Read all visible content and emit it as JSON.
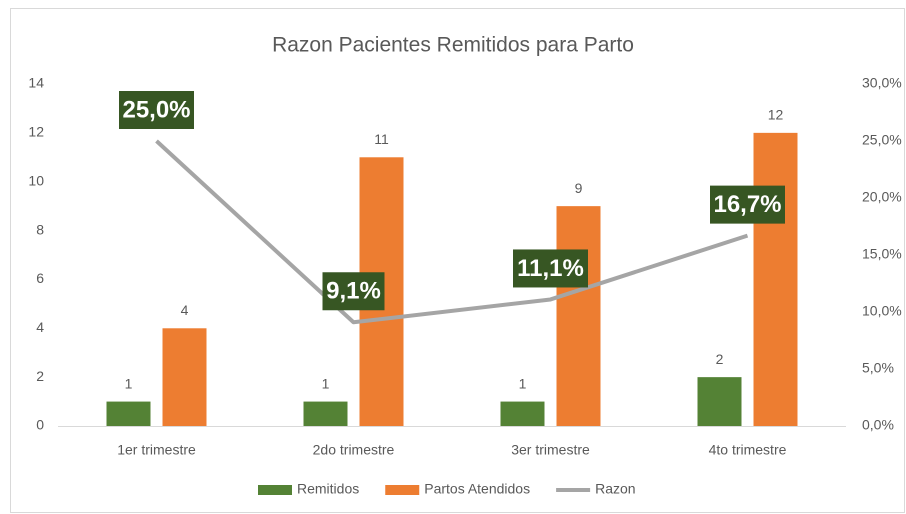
{
  "chart_data": {
    "type": "bar",
    "title": "Razon Pacientes Remitidos para Parto",
    "categories": [
      "1er trimestre",
      "2do trimestre",
      "3er trimestre",
      "4to trimestre"
    ],
    "series": [
      {
        "name": "Remitidos",
        "color": "#548235",
        "values": [
          1,
          1,
          1,
          2
        ]
      },
      {
        "name": "Partos Atendidos",
        "color": "#ed7d31",
        "values": [
          4,
          11,
          9,
          12
        ]
      },
      {
        "name": "Razon",
        "color": "#a5a5a5",
        "type": "line",
        "axis": "y2",
        "values": [
          25.0,
          9.1,
          11.1,
          16.7
        ],
        "value_labels": [
          "25,0%",
          "9,1%",
          "11,1%",
          "16,7%"
        ]
      }
    ],
    "ylim": [
      0,
      14
    ],
    "yticks": [
      0,
      2,
      4,
      6,
      8,
      10,
      12,
      14
    ],
    "y2lim": [
      0,
      30
    ],
    "y2ticks": [
      {
        "value": 0,
        "label": "0,0%"
      },
      {
        "value": 5,
        "label": "5,0%"
      },
      {
        "value": 10,
        "label": "10,0%"
      },
      {
        "value": 15,
        "label": "15,0%"
      },
      {
        "value": 20,
        "label": "20,0%"
      },
      {
        "value": 25,
        "label": "25,0%"
      },
      {
        "value": 30,
        "label": "30,0%"
      }
    ],
    "grid": false,
    "legend": "bottom"
  }
}
